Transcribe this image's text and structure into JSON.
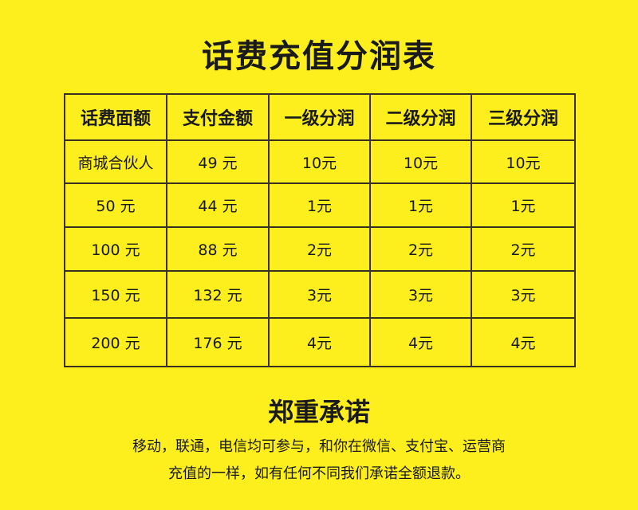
{
  "title": "话费充值分润表",
  "table": {
    "headers": [
      "话费面额",
      "支付金额",
      "一级分润",
      "二级分润",
      "三级分润"
    ],
    "rows": [
      [
        "商城合伙人",
        "49 元",
        "10元",
        "10元",
        "10元"
      ],
      [
        "50 元",
        "44 元",
        "1元",
        "1元",
        "1元"
      ],
      [
        "100 元",
        "88 元",
        "2元",
        "2元",
        "2元"
      ],
      [
        "150 元",
        "132 元",
        "3元",
        "3元",
        "3元"
      ],
      [
        "200 元",
        "176 元",
        "4元",
        "4元",
        "4元"
      ]
    ]
  },
  "promise": {
    "heading": "郑重承诺",
    "line1": "移动，联通，电信均可参与，和你在微信、支付宝、运营商",
    "line2": "充值的一样，如有任何不同我们承诺全额退款。"
  },
  "colors": {
    "background": "#fdee1e",
    "border": "#3a3020"
  }
}
